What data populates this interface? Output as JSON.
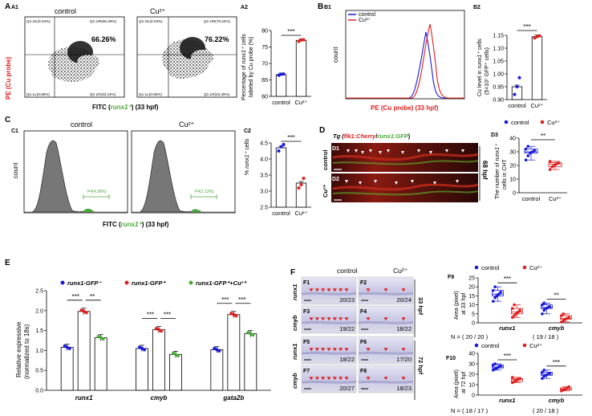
{
  "colors": {
    "control": "#1a1ad9",
    "cu": "#e02020",
    "cu_green": "#4aa83a",
    "panelbg": "#ffffff",
    "gray": "#7a7a7a"
  },
  "A": {
    "label": "A",
    "sub1": "A1",
    "sub2": "A2",
    "col_control": "control",
    "col_cu": "Cu²⁺",
    "ylabel": "PE (Cu probe)",
    "xlabel_pre": "FITC (",
    "xlabel_gene": "runx1⁺",
    ") (33 hpf)": "",
    "xlabel_post": ") (33 hpf)",
    "q_ul_1": "Q1-UL(0.02%)",
    "q_ur_1": "Q1-UR(66.26%)",
    "q_ll_1": "Q1-LL(0.59%)",
    "q_lr_1": "Q1-LR(33.14%)",
    "q_ul_2": "Q1-UL(0.02%)",
    "q_ur_2": "Q1-UR(76.22%)",
    "q_ll_2": "Q1-LL(0.56%)",
    "q_lr_2": "Q1-LR(23.20%)",
    "pct_1": "66.26%",
    "pct_2": "76.22%",
    "y2label_a": "Percentage of ",
    "y2label_gene": "runx1⁺",
    " cells": "",
    "y2label_b": " cells",
    "y2label_c": "labeled by Cu probe (%)",
    "sig": "***"
  },
  "B": {
    "label": "B",
    "sub1": "B1",
    "sub2": "B2",
    "legend_control": "control",
    "legend_cu": "Cu²⁺",
    "ylabel": "count",
    "xlabel": "PE (Cu probe) (33 hpf)",
    "y2label_a": "Cu level in ",
    "y2label_gene": "runx1⁺",
    "y2label_b": " cells",
    "y2label_c": "(5×10⁷ GFP⁺ cells)",
    "sig": "***"
  },
  "C": {
    "label": "C",
    "sub2": "C2",
    "sub1": "C1",
    "col_control": "control",
    "col_cu": "Cu²⁺",
    "ylabel": "count",
    "xlabel_pre": "FITC (",
    "xlabel_gene": "runx1⁺",
    "xlabel_post": ") (33 hpf)",
    "gate_1": "P4(4.39%)",
    "gate_2": "P4(3.13%)",
    "y2label_a": "% ",
    "y2label_gene": "runx1⁺",
    "y2label_b": " cells",
    "sig": "***"
  },
  "D": {
    "label": "D",
    "sub1": "D1",
    "sub2": "D2",
    "sub3": "D3",
    "title_pre": "Tg (",
    "title_flk": "flk1:Cherry",
    "title_slash": "/",
    "title_runx": "runx1:GFP",
    "title_post": ")",
    "row1": "control",
    "row2": "Cu²⁺",
    "stage": "68 hpf",
    "legend_control": "control",
    "legend_cu": "Cu²⁺",
    "y2label_a": "The number of ",
    "y2label_gene": "runx1⁺",
    "y2label_b": "cells in CHT",
    "sig": "**"
  },
  "E": {
    "label": "E",
    "legend_1": "runx1-GFP⁻",
    "legend_2": "runx1-GFP⁺",
    "legend_3": "runx1-GFP⁺+Cu²⁺",
    "ylabel_a": "Relative expressive",
    "ylabel_b": "(normalized to 18s)",
    "sig_a": "***",
    "sig_b": "**",
    "sig_c": "***",
    "sig_d": "***",
    "sig_e": "***",
    "sig_f": "***"
  },
  "F": {
    "label": "F",
    "col_control": "control",
    "col_cu": "Cu²⁺",
    "row_runx1": "runx1",
    "row_cmyb": "cmyb",
    "stage_33": "33 hpf",
    "stage_72": "72 hpf",
    "panels": [
      {
        "id": "F1",
        "count": "20/23"
      },
      {
        "id": "F2",
        "count": "20/24"
      },
      {
        "id": "F3",
        "count": "19/22"
      },
      {
        "id": "F4",
        "count": "18/22"
      },
      {
        "id": "F5",
        "count": "18/22"
      },
      {
        "id": "F6",
        "count": "17/20"
      },
      {
        "id": "F7",
        "count": "20/27"
      },
      {
        "id": "F8",
        "count": "18/23"
      }
    ],
    "F9": {
      "label": "F9",
      "legend_control": "control",
      "legend_cu": "Cu²⁺",
      "ylabel_a": "Area (pixel)",
      "ylabel_b": "at 33 hpf",
      "n_label": "N = ( 20 / 20 )",
      "n_label2": "( 19 / 18 )",
      "sig_a": "***",
      "sig_b": "**"
    },
    "F10": {
      "label": "F10",
      "legend_control": "control",
      "legend_cu": "Cu²⁺",
      "ylabel_a": "Area (pixel)",
      "ylabel_b": "at 72 hpf",
      "n_label": "N = ( 18 / 17 )",
      "n_label2": "( 20 / 18 )",
      "sig_a": "***",
      "sig_b": "***"
    }
  },
  "chart_data": [
    {
      "panel": "A2",
      "type": "bar",
      "categories": [
        "control",
        "Cu²⁺"
      ],
      "values": [
        66.6,
        77.0
      ],
      "points": [
        [
          66.4,
          66.7,
          66.8
        ],
        [
          76.7,
          77.1,
          77.2
        ]
      ],
      "ylabel": "Percentage of runx1⁺ cells labeled by Cu probe (%)",
      "ylim": [
        60,
        80
      ],
      "yticks": [
        60,
        65,
        70,
        75,
        80
      ]
    },
    {
      "panel": "B2",
      "type": "bar",
      "categories": [
        "control",
        "Cu²⁺"
      ],
      "values": [
        0.95,
        1.145
      ],
      "points": [
        [
          0.92,
          0.95,
          0.985
        ],
        [
          1.14,
          1.145,
          1.148
        ]
      ],
      "ylabel": "Cu level in runx1⁺ cells (5×10⁷ GFP⁺ cells)",
      "ylim": [
        0.9,
        1.15
      ],
      "yticks": [
        0.9,
        0.95,
        1.0,
        1.05,
        1.1,
        1.15
      ]
    },
    {
      "panel": "C2",
      "type": "bar",
      "categories": [
        "control",
        "Cu²⁺"
      ],
      "values": [
        4.35,
        3.25
      ],
      "points": [
        [
          4.25,
          4.38,
          4.45
        ],
        [
          3.1,
          3.2,
          3.4
        ]
      ],
      "ylabel": "% runx1⁺ cells",
      "ylim": [
        2.5,
        4.5
      ],
      "yticks": [
        2.5,
        3.0,
        3.5,
        4.0,
        4.5
      ]
    },
    {
      "panel": "D3",
      "type": "box",
      "categories": [
        "control",
        "Cu²⁺"
      ],
      "series": [
        {
          "name": "control",
          "values": [
            24,
            27,
            29,
            30,
            31,
            32,
            34
          ]
        },
        {
          "name": "Cu²⁺",
          "values": [
            17,
            19,
            20,
            21,
            22,
            23
          ]
        }
      ],
      "ylabel": "The number of runx1⁺ cells in CHT",
      "ylim": [
        0,
        40
      ],
      "yticks": [
        0,
        10,
        20,
        30,
        40
      ]
    },
    {
      "panel": "E",
      "type": "bar",
      "categories": [
        "runx1",
        "cmyb",
        "gata2b"
      ],
      "series": [
        {
          "name": "runx1-GFP⁻",
          "values": [
            1.08,
            1.05,
            1.02
          ]
        },
        {
          "name": "runx1-GFP⁺",
          "values": [
            1.98,
            1.52,
            1.9
          ]
        },
        {
          "name": "runx1-GFP⁺+Cu²⁺",
          "values": [
            1.32,
            0.9,
            1.42
          ]
        }
      ],
      "ylabel": "Relative expressive (normalized to 18s)",
      "ylim": [
        0,
        2.5
      ],
      "yticks": [
        0.0,
        0.5,
        1.0,
        1.5,
        2.0,
        2.5
      ]
    },
    {
      "panel": "F9",
      "type": "box",
      "categories": [
        "runx1",
        "cmyb"
      ],
      "series": [
        {
          "name": "control",
          "values": [
            [
              12,
              14,
              15,
              16,
              17,
              18,
              20
            ],
            [
              5,
              7,
              8,
              8.5,
              9,
              10,
              11
            ]
          ]
        },
        {
          "name": "Cu²⁺",
          "values": [
            [
              3,
              4,
              5,
              6,
              7,
              8,
              10
            ],
            [
              0.5,
              1,
              2,
              2.5,
              3,
              4,
              5
            ]
          ]
        }
      ],
      "ylabel": "Area (pixel) at 33 hpf",
      "ylim": [
        0,
        25
      ],
      "yticks": [
        0,
        5,
        10,
        15,
        20,
        25
      ]
    },
    {
      "panel": "F10",
      "type": "box",
      "categories": [
        "runx1",
        "cmyb"
      ],
      "series": [
        {
          "name": "control",
          "values": [
            [
              24,
              25,
              26,
              27,
              28,
              29,
              30
            ],
            [
              16,
              18,
              19,
              20,
              21,
              22,
              24
            ]
          ]
        },
        {
          "name": "Cu²⁺",
          "values": [
            [
              12,
              13,
              14,
              15,
              16,
              17
            ],
            [
              4,
              5,
              6,
              7,
              8
            ]
          ]
        }
      ],
      "ylabel": "Area (pixel) at 72 hpf",
      "ylim": [
        0,
        40
      ],
      "yticks": [
        0,
        10,
        20,
        30,
        40
      ]
    }
  ]
}
